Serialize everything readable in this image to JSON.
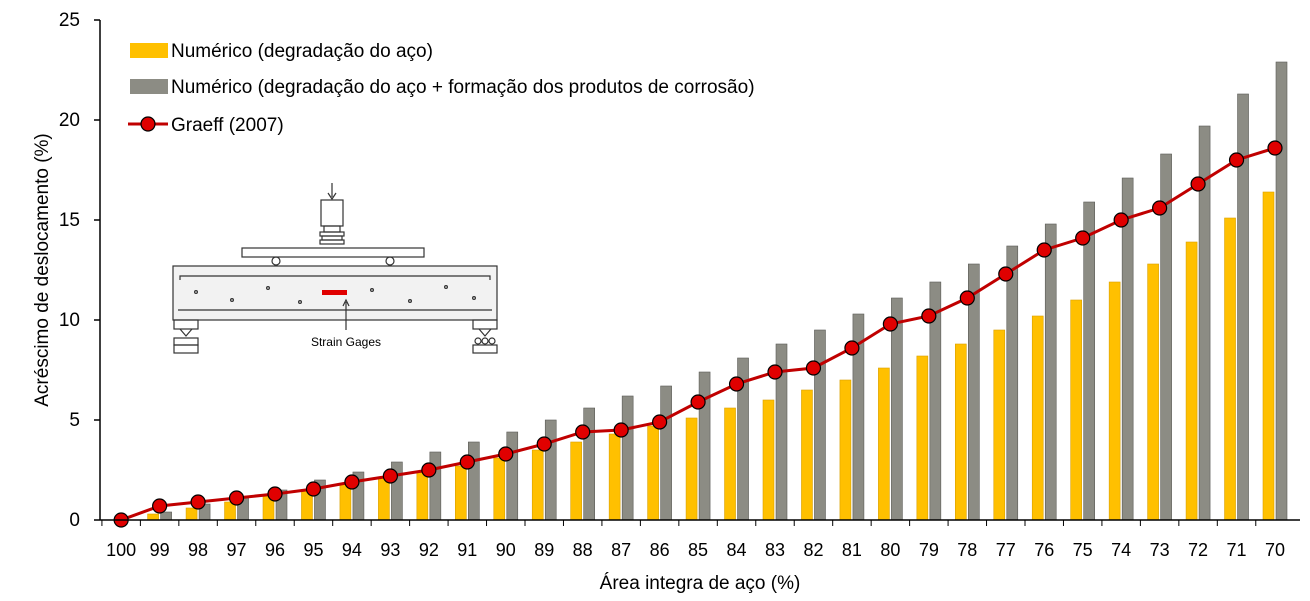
{
  "chart_data": {
    "type": "bar",
    "title": "",
    "xlabel": "Área integra de aço (%)",
    "ylabel": "Acréscimo de deslocamento (%)",
    "ylim": [
      0,
      25
    ],
    "yticks": [
      "0",
      "5",
      "10",
      "15",
      "20",
      "25"
    ],
    "categories": [
      "100",
      "99",
      "98",
      "97",
      "96",
      "95",
      "94",
      "93",
      "92",
      "91",
      "90",
      "89",
      "88",
      "87",
      "86",
      "85",
      "84",
      "83",
      "82",
      "81",
      "80",
      "79",
      "78",
      "77",
      "76",
      "75",
      "74",
      "73",
      "72",
      "71",
      "70"
    ],
    "series": [
      {
        "name": "Numérico (degradação do aço)",
        "kind": "bar",
        "color": "#FFC000",
        "values": [
          0,
          0.3,
          0.6,
          0.9,
          1.2,
          1.5,
          1.8,
          2.1,
          2.4,
          2.7,
          3.1,
          3.5,
          3.9,
          4.3,
          4.7,
          5.1,
          5.6,
          6.0,
          6.5,
          7.0,
          7.6,
          8.2,
          8.8,
          9.5,
          10.2,
          11.0,
          11.9,
          12.8,
          13.9,
          15.1,
          16.4
        ]
      },
      {
        "name": "Numérico (degradação do aço + formação dos produtos de corrosão)",
        "kind": "bar",
        "color": "#8C8C84",
        "values": [
          0,
          0.4,
          0.8,
          1.1,
          1.5,
          2.0,
          2.4,
          2.9,
          3.4,
          3.9,
          4.4,
          5.0,
          5.6,
          6.2,
          6.7,
          7.4,
          8.1,
          8.8,
          9.5,
          10.3,
          11.1,
          11.9,
          12.8,
          13.7,
          14.8,
          15.9,
          17.1,
          18.3,
          19.7,
          21.3,
          22.9
        ]
      },
      {
        "name": "Graeff (2007)",
        "kind": "line",
        "color": "#C00000",
        "values": [
          0,
          0.7,
          0.9,
          1.1,
          1.3,
          1.55,
          1.9,
          2.2,
          2.5,
          2.9,
          3.3,
          3.8,
          4.4,
          4.5,
          4.9,
          5.9,
          6.8,
          7.4,
          7.6,
          8.6,
          9.8,
          10.2,
          11.1,
          12.3,
          13.5,
          14.1,
          15.0,
          15.6,
          16.8,
          18.0,
          18.6
        ]
      }
    ],
    "legend": "top-left",
    "grid": false,
    "inset_label": "Strain Gages"
  }
}
